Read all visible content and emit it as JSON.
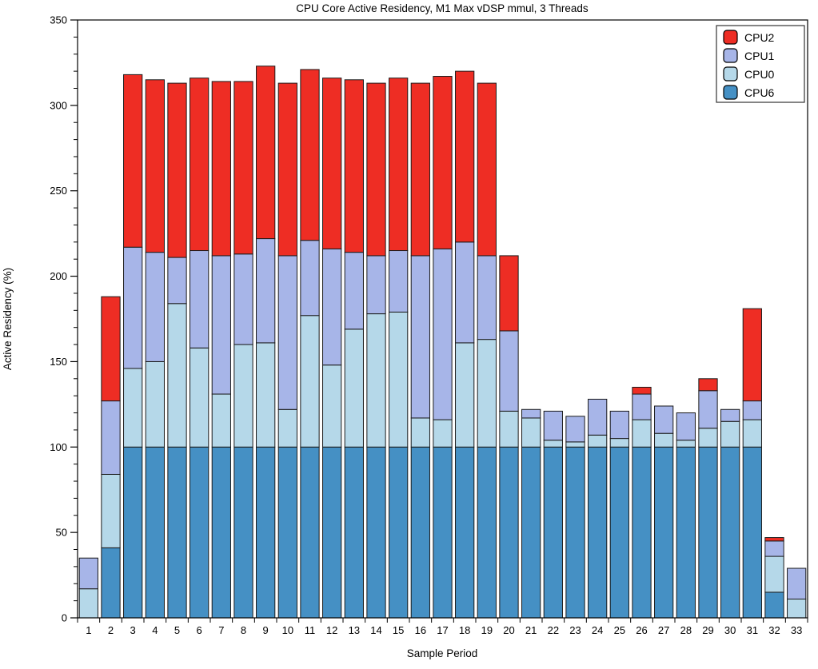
{
  "title": "CPU Core Active Residency, M1 Max vDSP mmul, 3 Threads",
  "chart_data": {
    "type": "bar",
    "stacked": true,
    "title": "CPU Core Active Residency, M1 Max vDSP mmul, 3 Threads",
    "xlabel": "Sample Period",
    "ylabel": "Active Residency (%)",
    "ylim": [
      0,
      350
    ],
    "ytick_step": 50,
    "yminor_step": 10,
    "grid": false,
    "legend_position": "top-right",
    "legend_entries": [
      "CPU2",
      "CPU1",
      "CPU0",
      "CPU6"
    ],
    "categories": [
      1,
      2,
      3,
      4,
      5,
      6,
      7,
      8,
      9,
      10,
      11,
      12,
      13,
      14,
      15,
      16,
      17,
      18,
      19,
      20,
      21,
      22,
      23,
      24,
      25,
      26,
      27,
      28,
      29,
      30,
      31,
      32,
      33
    ],
    "series": [
      {
        "name": "CPU6",
        "color": "#4590c4",
        "values": [
          0,
          41,
          100,
          100,
          100,
          100,
          100,
          100,
          100,
          100,
          100,
          100,
          100,
          100,
          100,
          100,
          100,
          100,
          100,
          100,
          100,
          100,
          100,
          100,
          100,
          100,
          100,
          100,
          100,
          100,
          100,
          15,
          0
        ]
      },
      {
        "name": "CPU0",
        "color": "#b5d8e9",
        "values": [
          17,
          43,
          46,
          50,
          84,
          58,
          31,
          60,
          61,
          22,
          77,
          48,
          69,
          78,
          79,
          17,
          16,
          61,
          63,
          21,
          17,
          4,
          3,
          7,
          5,
          16,
          8,
          4,
          11,
          15,
          16,
          21,
          11
        ]
      },
      {
        "name": "CPU1",
        "color": "#a7b5e8",
        "values": [
          18,
          43,
          71,
          64,
          27,
          57,
          81,
          53,
          61,
          90,
          44,
          68,
          45,
          34,
          36,
          95,
          100,
          59,
          49,
          47,
          5,
          17,
          15,
          21,
          16,
          15,
          16,
          16,
          22,
          7,
          11,
          9,
          18
        ]
      },
      {
        "name": "CPU2",
        "color": "#ee2d24",
        "values": [
          0,
          61,
          101,
          101,
          102,
          101,
          102,
          101,
          101,
          101,
          100,
          100,
          101,
          101,
          101,
          101,
          101,
          100,
          101,
          44,
          0,
          0,
          0,
          0,
          0,
          4,
          0,
          0,
          7,
          0,
          54,
          2,
          0
        ]
      }
    ],
    "colors": {
      "CPU2": "#ee2d24",
      "CPU1": "#a7b5e8",
      "CPU0": "#b5d8e9",
      "CPU6": "#4590c4",
      "segment_border": "#1a1a1a",
      "axis": "#000000"
    }
  }
}
